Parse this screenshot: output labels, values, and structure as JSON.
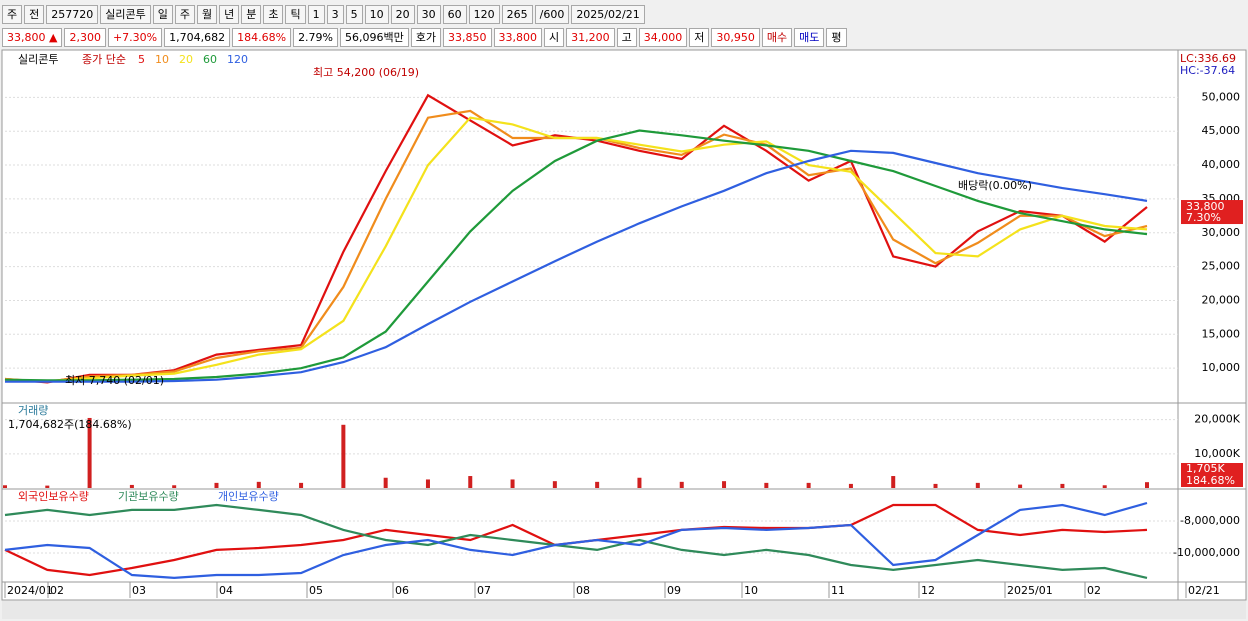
{
  "toolbar": {
    "items": [
      "주",
      "전",
      "257720",
      "실리콘투",
      "일",
      "주",
      "월",
      "년",
      "분",
      "초",
      "틱",
      "1",
      "3",
      "5",
      "10",
      "20",
      "30",
      "60",
      "120",
      "265",
      "/600",
      "2025/02/21"
    ]
  },
  "info_bar": {
    "items": [
      {
        "text": "33,800 ▲",
        "color": "#e00000"
      },
      {
        "text": "2,300",
        "color": "#e00000"
      },
      {
        "text": "+7.30%",
        "color": "#e00000"
      },
      {
        "text": "1,704,682",
        "color": "#000000"
      },
      {
        "text": "184.68%",
        "color": "#e00000"
      },
      {
        "text": "2.79%",
        "color": "#000000"
      },
      {
        "text": "56,096백만",
        "color": "#000000"
      },
      {
        "text": "호가",
        "color": "#000000"
      },
      {
        "text": "33,850",
        "color": "#e00000"
      },
      {
        "text": "33,800",
        "color": "#e00000"
      },
      {
        "text": "시",
        "color": "#000000"
      },
      {
        "text": "31,200",
        "color": "#e00000"
      },
      {
        "text": "고",
        "color": "#000000"
      },
      {
        "text": "34,000",
        "color": "#e00000"
      },
      {
        "text": "저",
        "color": "#000000"
      },
      {
        "text": "30,950",
        "color": "#e00000"
      },
      {
        "text": "매수",
        "color": "#c00000"
      },
      {
        "text": "매도",
        "color": "#0000c0"
      },
      {
        "text": "평",
        "color": "#000000"
      }
    ]
  },
  "price_chart": {
    "type": "line",
    "legend_name": "실리콘투",
    "legend_label": "종가 단순",
    "annotations": [
      "최고 54,200 (06/19)",
      "최저 7,740 (02/01)",
      "배당락(0.00%)"
    ],
    "lc_label": "LC:336.69",
    "hc_label": "HC:-37.64",
    "current_label": "33,800",
    "change_label": "7.30%",
    "ylim": [
      5000,
      56700
    ],
    "yticks": [
      {
        "value": 10000,
        "label": "10,000"
      },
      {
        "value": 15000,
        "label": "15,000"
      },
      {
        "value": 20000,
        "label": "20,000"
      },
      {
        "value": 25000,
        "label": "25,000"
      },
      {
        "value": 30000,
        "label": "30,000"
      },
      {
        "value": 35000,
        "label": "35,000"
      },
      {
        "value": 40000,
        "label": "40,000"
      },
      {
        "value": 45000,
        "label": "45,000"
      },
      {
        "value": 50000,
        "label": "50,000"
      }
    ],
    "series": [
      {
        "name": "5",
        "color": "#e01010",
        "values": [
          8400,
          7900,
          9000,
          9000,
          9700,
          12000,
          12700,
          13400,
          27200,
          39100,
          50300,
          46600,
          42900,
          44400,
          43600,
          42100,
          40900,
          45800,
          42100,
          37700,
          40600,
          26500,
          25000,
          30200,
          33200,
          32500,
          28700,
          33800
        ]
      },
      {
        "name": "10",
        "color": "#f08c1c",
        "values": [
          8400,
          8000,
          8800,
          9000,
          9500,
          11500,
          12500,
          13000,
          22000,
          35000,
          47000,
          48000,
          44000,
          44000,
          44000,
          42500,
          41500,
          44500,
          43000,
          38500,
          39500,
          29000,
          25500,
          28500,
          32500,
          32500,
          29500,
          31000
        ]
      },
      {
        "name": "20",
        "color": "#f4e21c",
        "values": [
          8300,
          8100,
          8500,
          8900,
          9200,
          10500,
          12000,
          12800,
          17000,
          28000,
          40000,
          47000,
          46000,
          44000,
          44000,
          43000,
          42000,
          43000,
          43500,
          40000,
          39000,
          33000,
          27000,
          26500,
          30500,
          32500,
          31000,
          30500
        ]
      },
      {
        "name": "60",
        "color": "#1f9a3a",
        "values": [
          8300,
          8200,
          8200,
          8300,
          8400,
          8700,
          9200,
          10000,
          11600,
          15400,
          22800,
          30200,
          36200,
          40600,
          43600,
          45100,
          44400,
          43600,
          42900,
          42100,
          40600,
          39100,
          36900,
          34700,
          32900,
          31700,
          30500,
          29800
        ]
      },
      {
        "name": "120",
        "color": "#2f5fe0",
        "values": [
          8000,
          8000,
          8000,
          8000,
          8100,
          8300,
          8800,
          9400,
          10900,
          13100,
          16500,
          19800,
          22800,
          25800,
          28700,
          31400,
          33900,
          36200,
          38800,
          40600,
          42100,
          41800,
          40300,
          38800,
          37700,
          36600,
          35700,
          34700
        ]
      }
    ]
  },
  "volume_chart": {
    "type": "bar",
    "legend_label": "거래량",
    "legend_value": "1,704,682주(184.68%)",
    "color": "#d02020",
    "current_label": "1,705K",
    "change_label": "184.68%",
    "ylim": [
      0,
      24000
    ],
    "yticks": [
      {
        "value": 10000,
        "label": "10,000K"
      },
      {
        "value": 20000,
        "label": "20,000K"
      }
    ],
    "values": [
      800,
      700,
      20500,
      900,
      800,
      1500,
      1800,
      1500,
      18500,
      3000,
      2500,
      3500,
      2500,
      2000,
      1800,
      3000,
      1800,
      2000,
      1500,
      1500,
      1200,
      3500,
      1200,
      1500,
      1000,
      1200,
      800,
      1705
    ]
  },
  "holdings_chart": {
    "type": "line",
    "ylim": [
      -11690000,
      -6190000
    ],
    "yticks": [
      {
        "value": -8000000,
        "label": "-8,000,000"
      },
      {
        "value": -10000000,
        "label": "-10,000,000"
      }
    ],
    "series": [
      {
        "name": "외국인보유수량",
        "color": "#e01010",
        "values": [
          -9810000,
          -11060000,
          -11380000,
          -10940000,
          -10440000,
          -9810000,
          -9690000,
          -9500000,
          -9190000,
          -8560000,
          -8880000,
          -9190000,
          -8250000,
          -9500000,
          -9190000,
          -8880000,
          -8560000,
          -8380000,
          -8440000,
          -8440000,
          -8250000,
          -7000000,
          -7000000,
          -8560000,
          -8880000,
          -8560000,
          -8690000,
          -8560000
        ]
      },
      {
        "name": "기관보유수량",
        "color": "#2f8a5a",
        "values": [
          -7630000,
          -7310000,
          -7630000,
          -7310000,
          -7310000,
          -7000000,
          -7310000,
          -7630000,
          -8560000,
          -9190000,
          -9500000,
          -8880000,
          -9190000,
          -9500000,
          -9810000,
          -9190000,
          -9810000,
          -10130000,
          -9810000,
          -10130000,
          -10750000,
          -11060000,
          -10750000,
          -10440000,
          -10750000,
          -11060000,
          -10940000,
          -11560000
        ]
      },
      {
        "name": "개인보유수량",
        "color": "#2f5fe0",
        "values": [
          -9810000,
          -9500000,
          -9690000,
          -11380000,
          -11560000,
          -11380000,
          -11380000,
          -11250000,
          -10130000,
          -9500000,
          -9190000,
          -9810000,
          -10130000,
          -9500000,
          -9190000,
          -9500000,
          -8560000,
          -8440000,
          -8560000,
          -8440000,
          -8250000,
          -10750000,
          -10440000,
          -8880000,
          -7310000,
          -7000000,
          -7630000,
          -6880000
        ]
      }
    ]
  },
  "x_axis": {
    "labels": [
      "2024/01",
      "02",
      "03",
      "04",
      "05",
      "06",
      "07",
      "08",
      "09",
      "10",
      "11",
      "12",
      "2025/01",
      "02",
      "02/21"
    ]
  }
}
